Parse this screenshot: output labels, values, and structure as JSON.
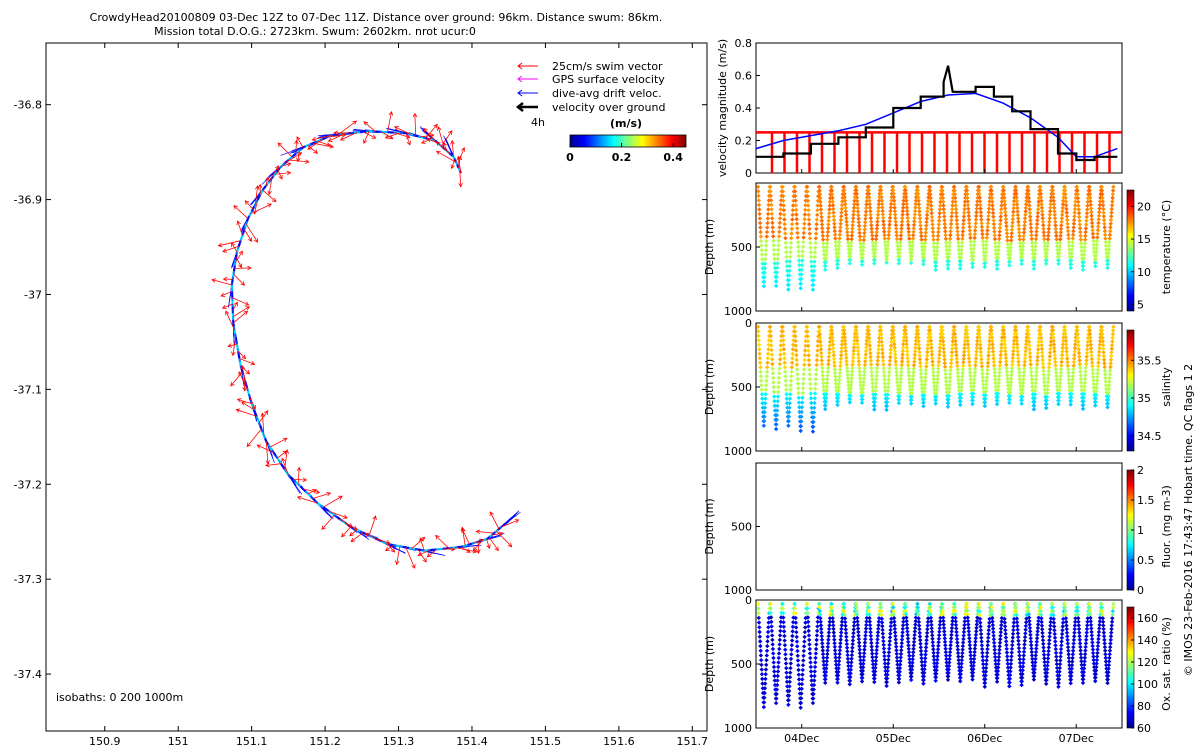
{
  "header": {
    "line1": "CrowdyHead20100809 03-Dec 12Z to 07-Dec 11Z. Distance over ground: 96km. Distance swum: 86km.",
    "line2": "Mission total D.O.G.: 2723km. Swum: 2602km. nrot ucur:0"
  },
  "side_label": "© IMOS 23-Feb-2016 17:43:47 Hobart time. QC flags 1  2",
  "colors": {
    "red": "#ff0000",
    "magenta": "#ff00ff",
    "blue": "#0000ff",
    "black": "#000000"
  },
  "chart_data": [
    {
      "type": "scatter",
      "name_key": "map",
      "xlabel": "",
      "ylabel": "",
      "xlim": [
        150.82,
        151.72
      ],
      "ylim": [
        -37.46,
        -36.735
      ],
      "xticks": [
        "150.9",
        "151",
        "151.1",
        "151.2",
        "151.3",
        "151.4",
        "151.5",
        "151.6",
        "151.7"
      ],
      "yticks": [
        "-36.8",
        "-36.9",
        "-37",
        "-37.1",
        "-37.2",
        "-37.3",
        "-37.4"
      ],
      "legend": {
        "placement": "top-right",
        "items": [
          "25cm/s swim vector",
          "GPS surface velocity",
          "dive-avg drift veloc.",
          "velocity over ground"
        ],
        "time_label": "4h",
        "colorbar_title": "(m/s)",
        "colorbar_ticks": [
          "0",
          "0.2",
          "0.4"
        ],
        "colorbar_range": [
          0,
          0.45
        ]
      },
      "isobath_label": "isobaths: 0   200   1000m",
      "track": [
        [
          151.385,
          -36.872
        ],
        [
          151.375,
          -36.855
        ],
        [
          151.35,
          -36.838
        ],
        [
          151.31,
          -36.83
        ],
        [
          151.26,
          -36.828
        ],
        [
          151.21,
          -36.832
        ],
        [
          151.17,
          -36.845
        ],
        [
          151.14,
          -36.865
        ],
        [
          151.115,
          -36.89
        ],
        [
          151.095,
          -36.92
        ],
        [
          151.08,
          -36.955
        ],
        [
          151.073,
          -36.99
        ],
        [
          151.075,
          -37.03
        ],
        [
          151.085,
          -37.075
        ],
        [
          151.1,
          -37.115
        ],
        [
          151.12,
          -37.155
        ],
        [
          151.15,
          -37.19
        ],
        [
          151.19,
          -37.22
        ],
        [
          151.235,
          -37.245
        ],
        [
          151.285,
          -37.263
        ],
        [
          151.335,
          -37.27
        ],
        [
          151.385,
          -37.266
        ],
        [
          151.42,
          -37.258
        ],
        [
          151.44,
          -37.245
        ]
      ]
    },
    {
      "type": "line",
      "name_key": "velocity",
      "ylabel": "velocity magnitude (m/s)",
      "xlim": [
        3.5,
        7.5
      ],
      "ylim": [
        0,
        0.8
      ],
      "yticks": [
        "0",
        "0.2",
        "0.4",
        "0.6",
        "0.8"
      ],
      "series": [
        {
          "values": [
            [
              3.5,
              0.15
            ],
            [
              3.8,
              0.2
            ],
            [
              4.1,
              0.23
            ],
            [
              4.4,
              0.26
            ],
            [
              4.7,
              0.3
            ],
            [
              5.0,
              0.37
            ],
            [
              5.3,
              0.44
            ],
            [
              5.6,
              0.48
            ],
            [
              5.9,
              0.49
            ],
            [
              6.2,
              0.43
            ],
            [
              6.5,
              0.34
            ],
            [
              6.8,
              0.22
            ],
            [
              7.0,
              0.1
            ],
            [
              7.2,
              0.1
            ],
            [
              7.45,
              0.15
            ]
          ]
        },
        {
          "values": [
            [
              3.5,
              0.1
            ],
            [
              3.8,
              0.1
            ],
            [
              3.8,
              0.12
            ],
            [
              4.1,
              0.12
            ],
            [
              4.1,
              0.18
            ],
            [
              4.4,
              0.18
            ],
            [
              4.4,
              0.22
            ],
            [
              4.7,
              0.22
            ],
            [
              4.7,
              0.28
            ],
            [
              5.0,
              0.28
            ],
            [
              5.0,
              0.4
            ],
            [
              5.3,
              0.4
            ],
            [
              5.3,
              0.47
            ],
            [
              5.55,
              0.47
            ],
            [
              5.55,
              0.56
            ],
            [
              5.6,
              0.66
            ],
            [
              5.65,
              0.5
            ],
            [
              5.9,
              0.5
            ],
            [
              5.9,
              0.53
            ],
            [
              6.1,
              0.53
            ],
            [
              6.1,
              0.47
            ],
            [
              6.3,
              0.47
            ],
            [
              6.3,
              0.38
            ],
            [
              6.5,
              0.38
            ],
            [
              6.5,
              0.27
            ],
            [
              6.8,
              0.27
            ],
            [
              6.8,
              0.12
            ],
            [
              7.0,
              0.12
            ],
            [
              7.0,
              0.08
            ],
            [
              7.2,
              0.08
            ],
            [
              7.2,
              0.1
            ],
            [
              7.45,
              0.1
            ]
          ]
        }
      ],
      "swim_level": 0.25
    },
    {
      "type": "scatter",
      "name_key": "temperature",
      "ylabel": "Depth (m)",
      "colorbar_label": "temperature (°C)",
      "colorbar_ticks": [
        "5",
        "10",
        "15",
        "20"
      ],
      "colorbar_range": [
        4,
        22.5
      ],
      "ylim": [
        0,
        1000
      ],
      "yticks": [
        "500",
        "1000"
      ],
      "dives": 29
    },
    {
      "type": "scatter",
      "name_key": "salinity",
      "ylabel": "Depth (m)",
      "colorbar_label": "salinity",
      "colorbar_ticks": [
        "34.5",
        "35",
        "35.5"
      ],
      "colorbar_range": [
        34.3,
        35.9
      ],
      "ylim": [
        0,
        1000
      ],
      "yticks": [
        "0",
        "500",
        "1000"
      ],
      "dives": 29
    },
    {
      "type": "scatter",
      "name_key": "fluor",
      "ylabel": "Depth (m)",
      "colorbar_label": "fluor. (mg m-3)",
      "colorbar_ticks": [
        "0",
        "0.5",
        "1",
        "1.5",
        "2"
      ],
      "colorbar_range": [
        0,
        2
      ],
      "ylim": [
        0,
        1000
      ],
      "yticks": [
        "500",
        "1000"
      ]
    },
    {
      "type": "scatter",
      "name_key": "oxygen",
      "ylabel": "Depth (m)",
      "colorbar_label": "Ox. sat. ratio (%)",
      "colorbar_ticks": [
        "60",
        "80",
        "100",
        "120",
        "140",
        "160"
      ],
      "colorbar_range": [
        60,
        170
      ],
      "ylim": [
        0,
        1000
      ],
      "yticks": [
        "0",
        "500",
        "1000"
      ],
      "xticks": [
        "04Dec",
        "05Dec",
        "06Dec",
        "07Dec"
      ],
      "xtick_values": [
        4,
        5,
        6,
        7
      ],
      "xlim": [
        3.5,
        7.5
      ],
      "dives": 29
    }
  ]
}
